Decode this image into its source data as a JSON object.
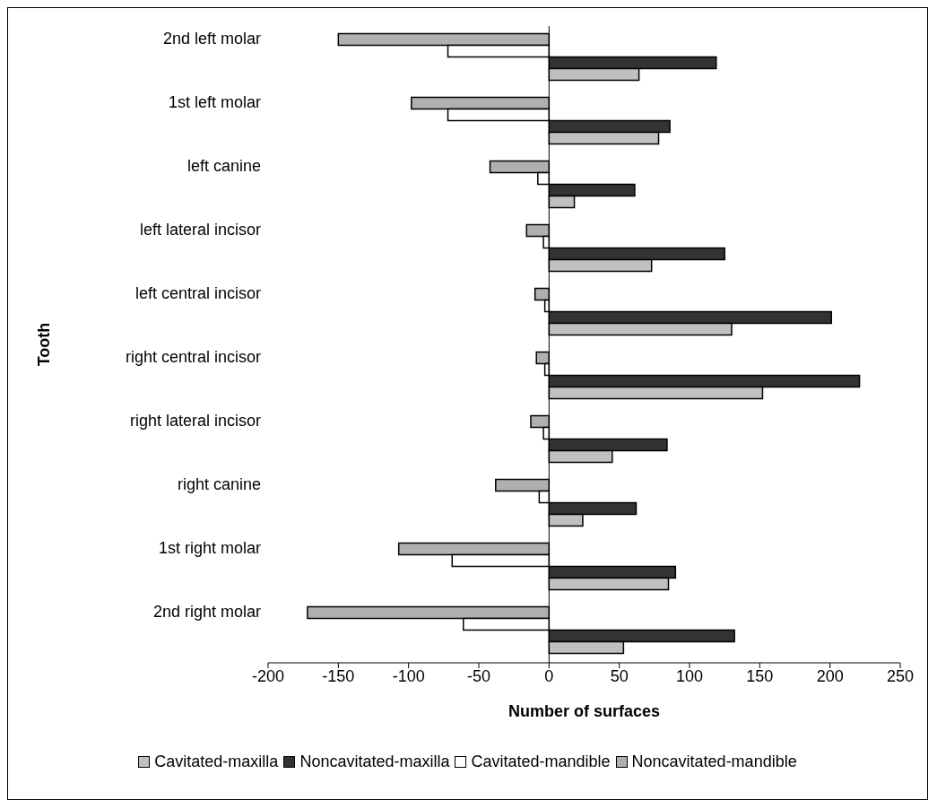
{
  "chart_data": {
    "type": "bar",
    "orientation": "horizontal",
    "xlabel": "Number of surfaces",
    "ylabel": "Tooth",
    "categories": [
      "2nd left molar",
      "1st left molar",
      "left canine ",
      "left lateral incisor",
      "left central incisor ",
      "right central incisor ",
      "right lateral incisor",
      "right canine",
      "1st right molar",
      "2nd right molar"
    ],
    "series": [
      {
        "name": "Cavitated-maxilla",
        "color": "#c0c0c0",
        "values": [
          64,
          78,
          18,
          73,
          130,
          152,
          45,
          24,
          85,
          53
        ]
      },
      {
        "name": "Noncavitated-maxilla",
        "color": "#333333",
        "values": [
          119,
          86,
          61,
          125,
          201,
          221,
          84,
          62,
          90,
          132
        ]
      },
      {
        "name": "Cavitated-mandible",
        "color": "#ffffff",
        "values": [
          -72,
          -72,
          -8,
          -4,
          -3,
          -3,
          -4,
          -7,
          -69,
          -61
        ]
      },
      {
        "name": "Noncavitated-mandible",
        "color": "#b0b0b0",
        "values": [
          -150,
          -98,
          -42,
          -16,
          -10,
          -9,
          -13,
          -38,
          -107,
          -172
        ]
      }
    ],
    "xlim": [
      -200,
      250
    ],
    "xticks": [
      -200,
      -150,
      -100,
      -50,
      0,
      50,
      100,
      150,
      200,
      250
    ],
    "legend": "bottom"
  }
}
